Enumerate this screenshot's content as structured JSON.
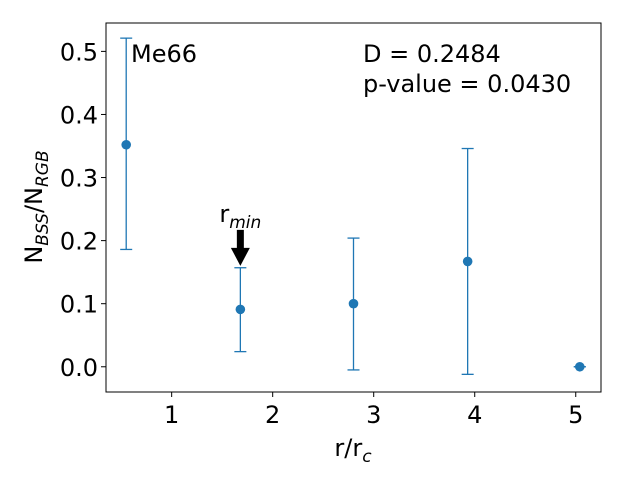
{
  "chart_data": {
    "type": "scatter",
    "title": "",
    "xlabel": "r/r",
    "xlabel_sub": "c",
    "ylabel": "N",
    "ylabel_sub1": "BSS",
    "ylabel_mid": "/N",
    "ylabel_sub2": "RGB",
    "xlim": [
      0.35,
      5.25
    ],
    "ylim": [
      -0.04,
      0.545
    ],
    "x_ticks": [
      1,
      2,
      3,
      4,
      5
    ],
    "x_tick_labels": [
      "1",
      "2",
      "3",
      "4",
      "5"
    ],
    "y_ticks": [
      0.0,
      0.1,
      0.2,
      0.3,
      0.4,
      0.5
    ],
    "y_tick_labels": [
      "0.0",
      "0.1",
      "0.2",
      "0.3",
      "0.4",
      "0.5"
    ],
    "grid": false,
    "series": [
      {
        "color": "#1f77b4",
        "points": [
          {
            "x": 0.55,
            "y": 0.352,
            "yerr_low": 0.186,
            "yerr_high": 0.521
          },
          {
            "x": 1.68,
            "y": 0.091,
            "yerr_low": 0.024,
            "yerr_high": 0.157
          },
          {
            "x": 2.8,
            "y": 0.1,
            "yerr_low": -0.005,
            "yerr_high": 0.204
          },
          {
            "x": 3.93,
            "y": 0.167,
            "yerr_low": -0.012,
            "yerr_high": 0.346
          },
          {
            "x": 5.04,
            "y": 0.0,
            "yerr_low": 0.0,
            "yerr_high": 0.0
          }
        ]
      }
    ],
    "annotations": {
      "cluster_name": "Me66",
      "stat_d": "D = 0.2484",
      "stat_p": "p-value = 0.0430",
      "rmin_label": "r",
      "rmin_sub": "min",
      "rmin_x": 1.68,
      "rmin_arrow_top_y": 0.217,
      "rmin_arrow_tip_y": 0.16
    }
  }
}
